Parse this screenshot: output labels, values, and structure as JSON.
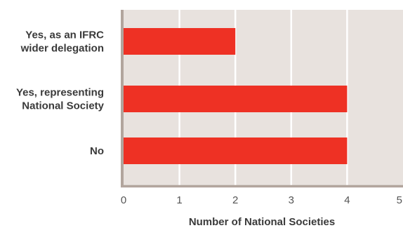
{
  "chart_data": {
    "type": "bar",
    "orientation": "horizontal",
    "categories": [
      [
        "Yes, as an IFRC",
        "wider delegation"
      ],
      [
        "Yes, representing",
        "National Society"
      ],
      [
        "No"
      ]
    ],
    "values": [
      2,
      4,
      4
    ],
    "xlabel": "Number of National Societies",
    "ylabel": "",
    "xlim": [
      0,
      5
    ],
    "xticks": [
      "0",
      "1",
      "2",
      "3",
      "4",
      "5"
    ],
    "grid": "vertical",
    "bar_color": "#ee3124",
    "plot_background": "#e8e2de",
    "gridline_color": "#ffffff",
    "axis_color": "#b2a59d"
  }
}
